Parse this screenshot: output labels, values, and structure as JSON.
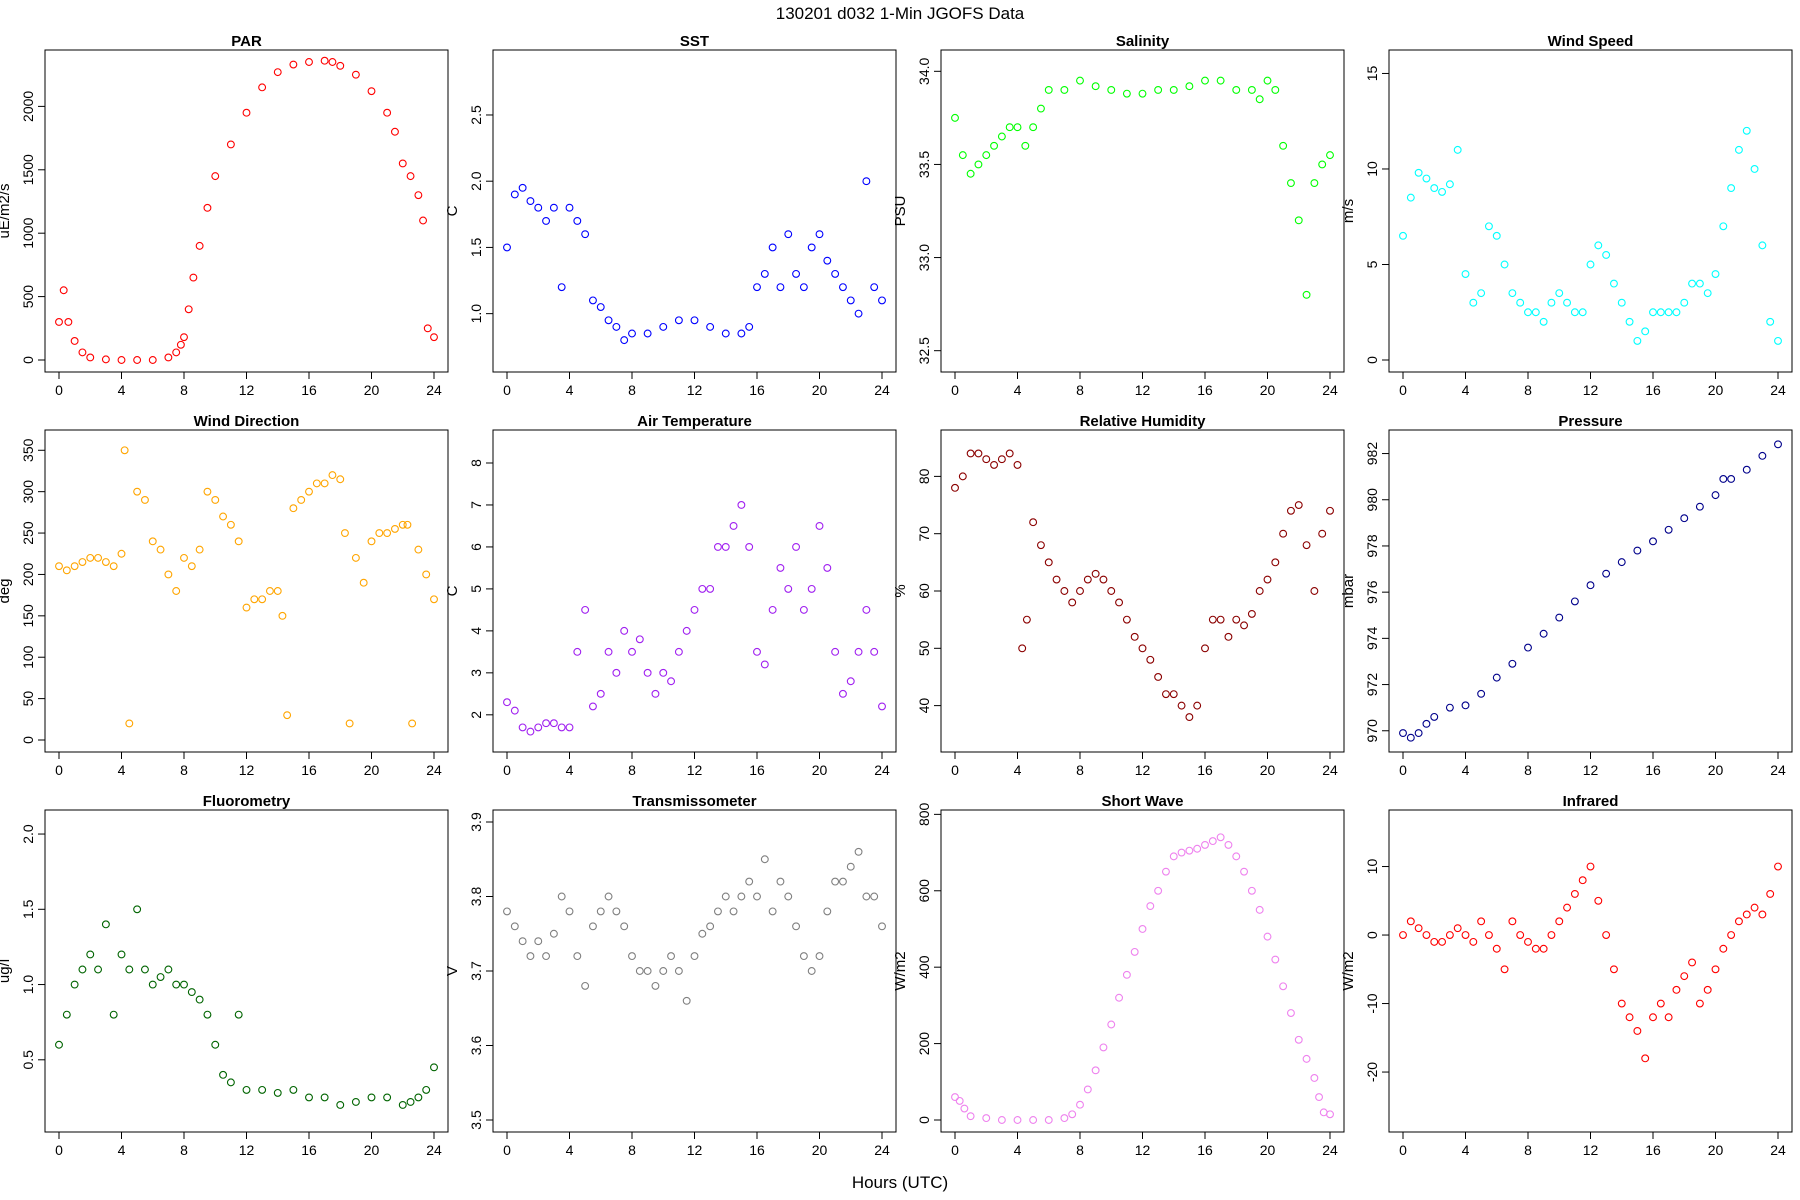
{
  "figure": {
    "title": "130201   d032   1-Min  JGOFS Data",
    "xlabel": "Hours (UTC)"
  },
  "chart_data": [
    {
      "type": "scatter",
      "title": "PAR",
      "ylabel": "uE/m2/s",
      "color": "#ff0000",
      "xlim": [
        0,
        24
      ],
      "ylim": [
        0,
        2350
      ],
      "xticks": [
        "0",
        "4",
        "8",
        "12",
        "16",
        "20",
        "24"
      ],
      "yticks": [
        "0",
        "500",
        "1000",
        "1500",
        "2000"
      ],
      "x": [
        0,
        0.3,
        0.6,
        1,
        1.5,
        2,
        3,
        4,
        5,
        6,
        7,
        7.5,
        7.8,
        8,
        8.3,
        8.6,
        9,
        9.5,
        10,
        11,
        12,
        13,
        14,
        15,
        16,
        17,
        17.5,
        18,
        19,
        20,
        21,
        21.5,
        22,
        22.5,
        23,
        23.3,
        23.6,
        24
      ],
      "y": [
        300,
        550,
        300,
        150,
        60,
        20,
        5,
        0,
        0,
        0,
        20,
        60,
        120,
        180,
        400,
        650,
        900,
        1200,
        1450,
        1700,
        1950,
        2150,
        2270,
        2330,
        2350,
        2360,
        2350,
        2320,
        2250,
        2120,
        1950,
        1800,
        1550,
        1450,
        1300,
        1100,
        250,
        180
      ]
    },
    {
      "type": "scatter",
      "title": "SST",
      "ylabel": "C",
      "color": "#0000ff",
      "xlim": [
        0,
        24
      ],
      "ylim": [
        0.65,
        2.9
      ],
      "xticks": [
        "0",
        "4",
        "8",
        "12",
        "16",
        "20",
        "24"
      ],
      "yticks": [
        "1.0",
        "1.5",
        "2.0",
        "2.5"
      ],
      "x": [
        0,
        0.5,
        1,
        1.5,
        2,
        2.5,
        3,
        3.5,
        4,
        4.5,
        5,
        5.5,
        6,
        6.5,
        7,
        7.5,
        8,
        9,
        10,
        11,
        12,
        13,
        14,
        15,
        15.5,
        16,
        16.5,
        17,
        17.5,
        18,
        18.5,
        19,
        19.5,
        20,
        20.5,
        21,
        21.5,
        22,
        22.5,
        23,
        23.5,
        24
      ],
      "y": [
        1.5,
        1.9,
        1.95,
        1.85,
        1.8,
        1.7,
        1.8,
        1.2,
        1.8,
        1.7,
        1.6,
        1.1,
        1.05,
        0.95,
        0.9,
        0.8,
        0.85,
        0.85,
        0.9,
        0.95,
        0.95,
        0.9,
        0.85,
        0.85,
        0.9,
        1.2,
        1.3,
        1.5,
        1.2,
        1.6,
        1.3,
        1.2,
        1.5,
        1.6,
        1.4,
        1.3,
        1.2,
        1.1,
        1.0,
        2.0,
        1.2,
        1.1
      ]
    },
    {
      "type": "scatter",
      "title": "Salinity",
      "ylabel": "PSU",
      "color": "#00ff00",
      "xlim": [
        0,
        24
      ],
      "ylim": [
        32.45,
        34.05
      ],
      "xticks": [
        "0",
        "4",
        "8",
        "12",
        "16",
        "20",
        "24"
      ],
      "yticks": [
        "32.5",
        "33.0",
        "33.5",
        "34.0"
      ],
      "x": [
        0,
        0.5,
        1,
        1.5,
        2,
        2.5,
        3,
        3.5,
        4,
        4.5,
        5,
        5.5,
        6,
        7,
        8,
        9,
        10,
        11,
        12,
        13,
        14,
        15,
        16,
        17,
        18,
        19,
        19.5,
        20,
        20.5,
        21,
        21.5,
        22,
        22.5,
        23,
        23.5,
        24
      ],
      "y": [
        33.75,
        33.55,
        33.45,
        33.5,
        33.55,
        33.6,
        33.65,
        33.7,
        33.7,
        33.6,
        33.7,
        33.8,
        33.9,
        33.9,
        33.95,
        33.92,
        33.9,
        33.88,
        33.88,
        33.9,
        33.9,
        33.92,
        33.95,
        33.95,
        33.9,
        33.9,
        33.85,
        33.95,
        33.9,
        33.6,
        33.4,
        33.2,
        32.8,
        33.4,
        33.5,
        33.55
      ]
    },
    {
      "type": "scatter",
      "title": "Wind Speed",
      "ylabel": "m/s",
      "color": "#00ffff",
      "xlim": [
        0,
        24
      ],
      "ylim": [
        0,
        15.6
      ],
      "xticks": [
        "0",
        "4",
        "8",
        "12",
        "16",
        "20",
        "24"
      ],
      "yticks": [
        "0",
        "5",
        "10",
        "15"
      ],
      "x": [
        0,
        0.5,
        1,
        1.5,
        2,
        2.5,
        3,
        3.5,
        4,
        4.5,
        5,
        5.5,
        6,
        6.5,
        7,
        7.5,
        8,
        8.5,
        9,
        9.5,
        10,
        10.5,
        11,
        11.5,
        12,
        12.5,
        13,
        13.5,
        14,
        14.5,
        15,
        15.5,
        16,
        16.5,
        17,
        17.5,
        18,
        18.5,
        19,
        19.5,
        20,
        20.5,
        21,
        21.5,
        22,
        22.5,
        23,
        23.5,
        24
      ],
      "y": [
        6.5,
        8.5,
        9.8,
        9.5,
        9,
        8.8,
        9.2,
        11,
        4.5,
        3,
        3.5,
        7,
        6.5,
        5,
        3.5,
        3,
        2.5,
        2.5,
        2,
        3,
        3.5,
        3,
        2.5,
        2.5,
        5,
        6,
        5.5,
        4,
        3,
        2,
        1,
        1.5,
        2.5,
        2.5,
        2.5,
        2.5,
        3,
        4,
        4,
        3.5,
        4.5,
        7,
        9,
        11,
        12,
        10,
        6,
        2,
        1
      ]
    },
    {
      "type": "scatter",
      "title": "Wind Direction",
      "ylabel": "deg",
      "color": "#ffa500",
      "xlim": [
        0,
        24
      ],
      "ylim": [
        0,
        360
      ],
      "xticks": [
        "0",
        "4",
        "8",
        "12",
        "16",
        "20",
        "24"
      ],
      "yticks": [
        "0",
        "50",
        "100",
        "150",
        "200",
        "250",
        "300",
        "350"
      ],
      "x": [
        0,
        0.5,
        1,
        1.5,
        2,
        2.5,
        3,
        3.5,
        4,
        4.2,
        4.5,
        5,
        5.5,
        6,
        6.5,
        7,
        7.5,
        8,
        8.5,
        9,
        9.5,
        10,
        10.5,
        11,
        11.5,
        12,
        12.5,
        13,
        13.5,
        14,
        14.3,
        14.6,
        15,
        15.5,
        16,
        16.5,
        17,
        17.5,
        18,
        18.3,
        18.6,
        19,
        19.5,
        20,
        20.5,
        21,
        21.5,
        22,
        22.3,
        22.6,
        23,
        23.5,
        24
      ],
      "y": [
        210,
        205,
        210,
        215,
        220,
        220,
        215,
        210,
        225,
        350,
        20,
        300,
        290,
        240,
        230,
        200,
        180,
        220,
        210,
        230,
        300,
        290,
        270,
        260,
        240,
        160,
        170,
        170,
        180,
        180,
        150,
        30,
        280,
        290,
        300,
        310,
        310,
        320,
        315,
        250,
        20,
        220,
        190,
        240,
        250,
        250,
        255,
        260,
        260,
        20,
        230,
        200,
        170
      ]
    },
    {
      "type": "scatter",
      "title": "Air Temperature",
      "ylabel": "C",
      "color": "#a020f0",
      "xlim": [
        0,
        24
      ],
      "ylim": [
        1.4,
        8.5
      ],
      "xticks": [
        "0",
        "4",
        "8",
        "12",
        "16",
        "20",
        "24"
      ],
      "yticks": [
        "2",
        "3",
        "4",
        "5",
        "6",
        "7",
        "8"
      ],
      "x": [
        0,
        0.5,
        1,
        1.5,
        2,
        2.5,
        3,
        3.5,
        4,
        4.5,
        5,
        5.5,
        6,
        6.5,
        7,
        7.5,
        8,
        8.5,
        9,
        9.5,
        10,
        10.5,
        11,
        11.5,
        12,
        12.5,
        13,
        13.5,
        14,
        14.5,
        15,
        15.5,
        16,
        16.5,
        17,
        17.5,
        18,
        18.5,
        19,
        19.5,
        20,
        20.5,
        21,
        21.5,
        22,
        22.5,
        23,
        23.5,
        24
      ],
      "y": [
        2.3,
        2.1,
        1.7,
        1.6,
        1.7,
        1.8,
        1.8,
        1.7,
        1.7,
        3.5,
        4.5,
        2.2,
        2.5,
        3.5,
        3,
        4,
        3.5,
        3.8,
        3,
        2.5,
        3,
        2.8,
        3.5,
        4,
        4.5,
        5,
        5,
        6,
        6,
        6.5,
        7,
        6,
        3.5,
        3.2,
        4.5,
        5.5,
        5,
        6,
        4.5,
        5,
        6.5,
        5.5,
        3.5,
        2.5,
        2.8,
        3.5,
        4.5,
        3.5,
        2.2
      ]
    },
    {
      "type": "scatter",
      "title": "Relative Humidity",
      "ylabel": "%",
      "color": "#8b0000",
      "xlim": [
        0,
        24
      ],
      "ylim": [
        34,
        86
      ],
      "xticks": [
        "0",
        "4",
        "8",
        "12",
        "16",
        "20",
        "24"
      ],
      "yticks": [
        "40",
        "50",
        "60",
        "70",
        "80"
      ],
      "x": [
        0,
        0.5,
        1,
        1.5,
        2,
        2.5,
        3,
        3.5,
        4,
        4.3,
        4.6,
        5,
        5.5,
        6,
        6.5,
        7,
        7.5,
        8,
        8.5,
        9,
        9.5,
        10,
        10.5,
        11,
        11.5,
        12,
        12.5,
        13,
        13.5,
        14,
        14.5,
        15,
        15.5,
        16,
        16.5,
        17,
        17.5,
        18,
        18.5,
        19,
        19.5,
        20,
        20.5,
        21,
        21.5,
        22,
        22.5,
        23,
        23.5,
        24
      ],
      "y": [
        78,
        80,
        84,
        84,
        83,
        82,
        83,
        84,
        82,
        50,
        55,
        72,
        68,
        65,
        62,
        60,
        58,
        60,
        62,
        63,
        62,
        60,
        58,
        55,
        52,
        50,
        48,
        45,
        42,
        42,
        40,
        38,
        40,
        50,
        55,
        55,
        52,
        55,
        54,
        56,
        60,
        62,
        65,
        70,
        74,
        75,
        68,
        60,
        70,
        74
      ]
    },
    {
      "type": "scatter",
      "title": "Pressure",
      "ylabel": "mbar",
      "color": "#00008b",
      "xlim": [
        0,
        24
      ],
      "ylim": [
        969.6,
        982.5
      ],
      "xticks": [
        "0",
        "4",
        "8",
        "12",
        "16",
        "20",
        "24"
      ],
      "yticks": [
        "970",
        "972",
        "974",
        "976",
        "978",
        "980",
        "982"
      ],
      "x": [
        0,
        0.5,
        1,
        1.5,
        2,
        3,
        4,
        5,
        6,
        7,
        8,
        9,
        10,
        11,
        12,
        13,
        14,
        15,
        16,
        17,
        18,
        19,
        20,
        20.5,
        21,
        22,
        23,
        24
      ],
      "y": [
        969.9,
        969.7,
        969.9,
        970.3,
        970.6,
        971,
        971.1,
        971.6,
        972.3,
        972.9,
        973.6,
        974.2,
        974.9,
        975.6,
        976.3,
        976.8,
        977.3,
        977.8,
        978.2,
        978.7,
        979.2,
        979.7,
        980.2,
        980.9,
        980.9,
        981.3,
        981.9,
        982.4
      ]
    },
    {
      "type": "scatter",
      "title": "Fluorometry",
      "ylabel": "ug/l",
      "color": "#006400",
      "xlim": [
        0,
        24
      ],
      "ylim": [
        0.1,
        2.08
      ],
      "xticks": [
        "0",
        "4",
        "8",
        "12",
        "16",
        "20",
        "24"
      ],
      "yticks": [
        "0.5",
        "1.0",
        "1.5",
        "2.0"
      ],
      "x": [
        0,
        0.5,
        1,
        1.5,
        2,
        2.5,
        3,
        3.5,
        4,
        4.5,
        5,
        5.5,
        6,
        6.5,
        7,
        7.5,
        8,
        8.5,
        9,
        9.5,
        10,
        10.5,
        11,
        11.5,
        12,
        13,
        14,
        15,
        16,
        17,
        18,
        19,
        20,
        21,
        22,
        22.5,
        23,
        23.5,
        24
      ],
      "y": [
        0.6,
        0.8,
        1.0,
        1.1,
        1.2,
        1.1,
        1.4,
        0.8,
        1.2,
        1.1,
        1.5,
        1.1,
        1.0,
        1.05,
        1.1,
        1.0,
        1.0,
        0.95,
        0.9,
        0.8,
        0.6,
        0.4,
        0.35,
        0.8,
        0.3,
        0.3,
        0.28,
        0.3,
        0.25,
        0.25,
        0.2,
        0.22,
        0.25,
        0.25,
        0.2,
        0.22,
        0.25,
        0.3,
        0.45
      ]
    },
    {
      "type": "scatter",
      "title": "Transmissometer",
      "ylabel": "V",
      "color": "#808080",
      "xlim": [
        0,
        24
      ],
      "ylim": [
        3.5,
        3.9
      ],
      "xticks": [
        "0",
        "4",
        "8",
        "12",
        "16",
        "20",
        "24"
      ],
      "yticks": [
        "3.5",
        "3.6",
        "3.7",
        "3.8",
        "3.9"
      ],
      "x": [
        0,
        0.5,
        1,
        1.5,
        2,
        2.5,
        3,
        3.5,
        4,
        4.5,
        5,
        5.5,
        6,
        6.5,
        7,
        7.5,
        8,
        8.5,
        9,
        9.5,
        10,
        10.5,
        11,
        11.5,
        12,
        12.5,
        13,
        13.5,
        14,
        14.5,
        15,
        15.5,
        16,
        16.5,
        17,
        17.5,
        18,
        18.5,
        19,
        19.5,
        20,
        20.5,
        21,
        21.5,
        22,
        22.5,
        23,
        23.5,
        24
      ],
      "y": [
        3.78,
        3.76,
        3.74,
        3.72,
        3.74,
        3.72,
        3.75,
        3.8,
        3.78,
        3.72,
        3.68,
        3.76,
        3.78,
        3.8,
        3.78,
        3.76,
        3.72,
        3.7,
        3.7,
        3.68,
        3.7,
        3.72,
        3.7,
        3.66,
        3.72,
        3.75,
        3.76,
        3.78,
        3.8,
        3.78,
        3.8,
        3.82,
        3.8,
        3.85,
        3.78,
        3.82,
        3.8,
        3.76,
        3.72,
        3.7,
        3.72,
        3.78,
        3.82,
        3.82,
        3.84,
        3.86,
        3.8,
        3.8,
        3.76
      ]
    },
    {
      "type": "scatter",
      "title": "Short Wave",
      "ylabel": "W/m2",
      "color": "#ee82ee",
      "xlim": [
        0,
        24
      ],
      "ylim": [
        0,
        780
      ],
      "xticks": [
        "0",
        "4",
        "8",
        "12",
        "16",
        "20",
        "24"
      ],
      "yticks": [
        "0",
        "200",
        "400",
        "600",
        "800"
      ],
      "x": [
        0,
        0.3,
        0.6,
        1,
        2,
        3,
        4,
        5,
        6,
        7,
        7.5,
        8,
        8.5,
        9,
        9.5,
        10,
        10.5,
        11,
        11.5,
        12,
        12.5,
        13,
        13.5,
        14,
        14.5,
        15,
        15.5,
        16,
        16.5,
        17,
        17.5,
        18,
        18.5,
        19,
        19.5,
        20,
        20.5,
        21,
        21.5,
        22,
        22.5,
        23,
        23.3,
        23.6,
        24
      ],
      "y": [
        60,
        50,
        30,
        10,
        5,
        0,
        0,
        0,
        0,
        5,
        15,
        40,
        80,
        130,
        190,
        250,
        320,
        380,
        440,
        500,
        560,
        600,
        650,
        690,
        700,
        705,
        710,
        720,
        730,
        740,
        720,
        690,
        650,
        600,
        550,
        480,
        420,
        350,
        280,
        210,
        160,
        110,
        60,
        20,
        15
      ]
    },
    {
      "type": "scatter",
      "title": "Infrared",
      "ylabel": "W/m2",
      "color": "#ff0000",
      "xlim": [
        0,
        24
      ],
      "ylim": [
        -27,
        16.5
      ],
      "xticks": [
        "0",
        "4",
        "8",
        "12",
        "16",
        "20",
        "24"
      ],
      "yticks": [
        "-20",
        "-10",
        "0",
        "10"
      ],
      "x": [
        0,
        0.5,
        1,
        1.5,
        2,
        2.5,
        3,
        3.5,
        4,
        4.5,
        5,
        5.5,
        6,
        6.5,
        7,
        7.5,
        8,
        8.5,
        9,
        9.5,
        10,
        10.5,
        11,
        11.5,
        12,
        12.5,
        13,
        13.5,
        14,
        14.5,
        15,
        15.5,
        16,
        16.5,
        17,
        17.5,
        18,
        18.5,
        19,
        19.5,
        20,
        20.5,
        21,
        21.5,
        22,
        22.5,
        23,
        23.5,
        24
      ],
      "y": [
        0,
        2,
        1,
        0,
        -1,
        -1,
        0,
        1,
        0,
        -1,
        2,
        0,
        -2,
        -5,
        2,
        0,
        -1,
        -2,
        -2,
        0,
        2,
        4,
        6,
        8,
        10,
        5,
        0,
        -5,
        -10,
        -12,
        -14,
        -18,
        -12,
        -10,
        -12,
        -8,
        -6,
        -4,
        -10,
        -8,
        -5,
        -2,
        0,
        2,
        3,
        4,
        3,
        6,
        10
      ]
    }
  ]
}
